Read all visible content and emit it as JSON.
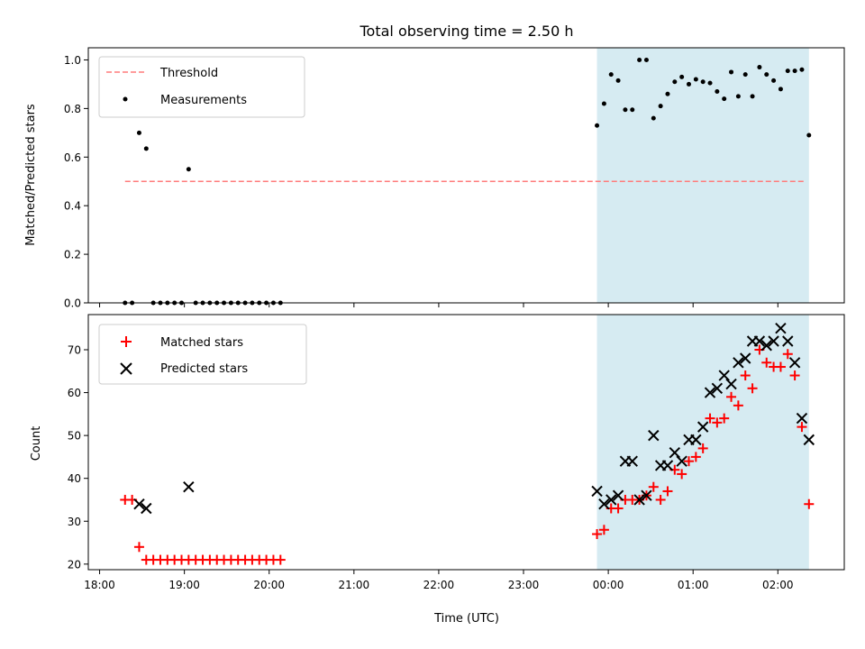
{
  "figure_title": "Total observing time = 2.50 h",
  "colors": {
    "threshold": "#ff7b7b",
    "measurements": "#000000",
    "matched": "#ff0000",
    "predicted": "#000000",
    "observing_band": "#add8e6"
  },
  "chart_data": [
    {
      "type": "scatter",
      "panel": "top",
      "ylabel": "Matched/Predicted stars",
      "xlabel": "",
      "xlim": [
        "2020-01-01T17:52",
        "2020-01-02T02:47"
      ],
      "ylim": [
        0,
        1.05
      ],
      "yticks": [
        "0.0",
        "0.2",
        "0.4",
        "0.6",
        "0.8",
        "1.0"
      ],
      "legend_position": "top-left",
      "grid": false,
      "observing_band": [
        "23:52",
        "02:22"
      ],
      "series": [
        {
          "name": "Threshold",
          "kind": "dashed-line",
          "x": [
            "18:18",
            "02:20"
          ],
          "y": [
            0.5,
            0.5
          ]
        },
        {
          "name": "Measurements",
          "kind": "dot",
          "x": [
            "18:18",
            "18:23",
            "18:28",
            "18:33",
            "18:38",
            "18:43",
            "18:48",
            "18:53",
            "18:58",
            "19:03",
            "19:08",
            "19:13",
            "19:18",
            "19:23",
            "19:28",
            "19:33",
            "19:38",
            "19:43",
            "19:48",
            "19:53",
            "19:58",
            "20:03",
            "20:08",
            "23:52",
            "23:57",
            "00:02",
            "00:07",
            "00:12",
            "00:17",
            "00:22",
            "00:27",
            "00:32",
            "00:37",
            "00:42",
            "00:47",
            "00:52",
            "00:57",
            "01:02",
            "01:07",
            "01:12",
            "01:17",
            "01:22",
            "01:27",
            "01:32",
            "01:37",
            "01:42",
            "01:47",
            "01:52",
            "01:57",
            "02:02",
            "02:07",
            "02:12",
            "02:17",
            "02:22"
          ],
          "y": [
            0.0,
            0.0,
            0.7,
            0.635,
            0.0,
            0.0,
            0.0,
            0.0,
            0.0,
            0.55,
            0.0,
            0.0,
            0.0,
            0.0,
            0.0,
            0.0,
            0.0,
            0.0,
            0.0,
            0.0,
            0.0,
            0.0,
            0.0,
            0.73,
            0.82,
            0.94,
            0.915,
            0.795,
            0.795,
            1.0,
            1.0,
            0.76,
            0.81,
            0.86,
            0.91,
            0.93,
            0.9,
            0.92,
            0.91,
            0.905,
            0.87,
            0.84,
            0.95,
            0.85,
            0.94,
            0.85,
            0.97,
            0.94,
            0.915,
            0.88,
            0.955,
            0.955,
            0.96,
            0.69
          ]
        }
      ]
    },
    {
      "type": "scatter",
      "panel": "bottom",
      "ylabel": "Count",
      "xlabel": "Time (UTC)",
      "xlim": [
        "2020-01-01T17:52",
        "2020-01-02T02:47"
      ],
      "ylim": [
        18.7,
        78.2
      ],
      "yticks": [
        "20",
        "30",
        "40",
        "50",
        "60",
        "70"
      ],
      "xticks": [
        "18:00",
        "19:00",
        "20:00",
        "21:00",
        "22:00",
        "23:00",
        "00:00",
        "01:00",
        "02:00"
      ],
      "legend_position": "top-left",
      "grid": false,
      "observing_band": [
        "23:52",
        "02:22"
      ],
      "series": [
        {
          "name": "Matched stars",
          "kind": "plus",
          "x": [
            "18:18",
            "18:23",
            "18:28",
            "18:33",
            "18:38",
            "18:43",
            "18:48",
            "18:53",
            "18:58",
            "19:03",
            "19:08",
            "19:13",
            "19:18",
            "19:23",
            "19:28",
            "19:33",
            "19:38",
            "19:43",
            "19:48",
            "19:53",
            "19:58",
            "20:03",
            "20:08",
            "23:52",
            "23:57",
            "00:02",
            "00:07",
            "00:12",
            "00:17",
            "00:22",
            "00:27",
            "00:32",
            "00:37",
            "00:42",
            "00:47",
            "00:52",
            "00:57",
            "01:02",
            "01:07",
            "01:12",
            "01:17",
            "01:22",
            "01:27",
            "01:32",
            "01:37",
            "01:42",
            "01:47",
            "01:52",
            "01:57",
            "02:02",
            "02:07",
            "02:12",
            "02:17",
            "02:22"
          ],
          "y": [
            35,
            35,
            24,
            21,
            21,
            21,
            21,
            21,
            21,
            21,
            21,
            21,
            21,
            21,
            21,
            21,
            21,
            21,
            21,
            21,
            21,
            21,
            21,
            27,
            28,
            33,
            33,
            35,
            35,
            35,
            36,
            38,
            35,
            37,
            42,
            41,
            44,
            45,
            47,
            54,
            53,
            54,
            59,
            57,
            64,
            61,
            70,
            67,
            66,
            66,
            69,
            64,
            52,
            34
          ]
        },
        {
          "name": "Predicted stars",
          "kind": "x",
          "x": [
            "18:28",
            "18:33",
            "19:03",
            "23:52",
            "23:57",
            "00:02",
            "00:07",
            "00:12",
            "00:17",
            "00:22",
            "00:27",
            "00:32",
            "00:37",
            "00:42",
            "00:47",
            "00:52",
            "00:57",
            "01:02",
            "01:07",
            "01:12",
            "01:17",
            "01:22",
            "01:27",
            "01:32",
            "01:37",
            "01:42",
            "01:47",
            "01:52",
            "01:57",
            "02:02",
            "02:07",
            "02:12",
            "02:17",
            "02:22"
          ],
          "y": [
            34,
            33,
            38,
            37,
            34,
            35,
            36,
            44,
            44,
            35,
            36,
            50,
            43,
            43,
            46,
            44,
            49,
            49,
            52,
            60,
            61,
            64,
            62,
            67,
            68,
            72,
            72,
            71,
            72,
            75,
            72,
            67,
            54,
            49
          ]
        }
      ]
    }
  ]
}
